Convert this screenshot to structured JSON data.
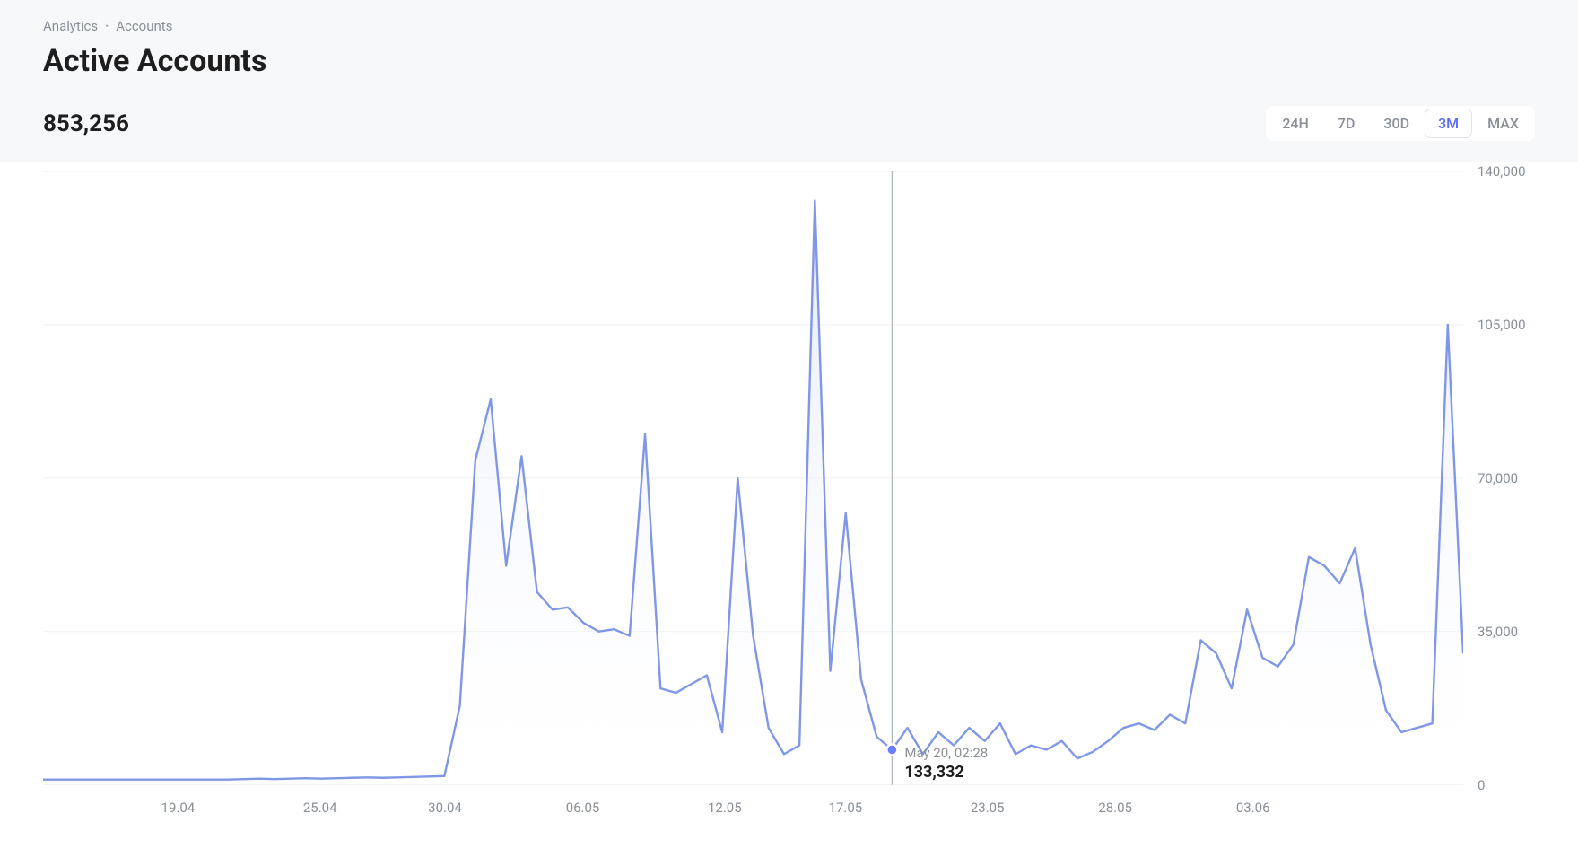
{
  "breadcrumb": {
    "parent": "Analytics",
    "current": "Accounts"
  },
  "title": "Active Accounts",
  "stat_value": "853,256",
  "time_ranges": {
    "options": [
      "24H",
      "7D",
      "30D",
      "3M",
      "MAX"
    ],
    "active": "3M"
  },
  "tooltip": {
    "date": "May 20, 02:28",
    "value": "133,332"
  },
  "chart": {
    "type": "area",
    "line_color": "#8097e6",
    "fill_top_color": "#e1e8fb",
    "fill_bottom_color": "#ffffff",
    "line_width": 2,
    "grid_color": "#f0f2f5",
    "crosshair_color": "#b0b4bc",
    "marker_color": "#6b7eff",
    "background_color": "#ffffff",
    "y_axis": {
      "min": 0,
      "max": 140000,
      "ticks": [
        0,
        35000,
        70000,
        105000,
        140000
      ],
      "tick_labels": [
        "0",
        "35,000",
        "70,000",
        "105,000",
        "140,000"
      ]
    },
    "x_axis": {
      "tick_labels": [
        "19.04",
        "25.04",
        "30.04",
        "06.05",
        "12.05",
        "17.05",
        "23.05",
        "28.05",
        "03.06"
      ],
      "tick_positions": [
        0.095,
        0.195,
        0.283,
        0.38,
        0.48,
        0.565,
        0.665,
        0.755,
        0.852
      ]
    },
    "crosshair_x": 0.593,
    "series": [
      1200,
      1200,
      1200,
      1200,
      1200,
      1200,
      1200,
      1200,
      1200,
      1200,
      1200,
      1200,
      1200,
      1300,
      1400,
      1300,
      1400,
      1500,
      1400,
      1500,
      1600,
      1700,
      1600,
      1700,
      1800,
      1900,
      2000,
      18000,
      74000,
      88000,
      50000,
      75000,
      44000,
      40000,
      40500,
      37000,
      35000,
      35500,
      34000,
      80000,
      22000,
      21000,
      23000,
      25000,
      12000,
      70000,
      34000,
      13000,
      7000,
      9000,
      133332,
      26000,
      62000,
      24000,
      11000,
      8000,
      13000,
      7000,
      12000,
      9000,
      13000,
      10000,
      14000,
      7000,
      9000,
      8000,
      10000,
      6000,
      7500,
      10000,
      13000,
      14000,
      12500,
      16000,
      14000,
      33000,
      30000,
      22000,
      40000,
      29000,
      27000,
      32000,
      52000,
      50000,
      46000,
      54000,
      32000,
      17000,
      12000,
      13000,
      14000,
      105000,
      30000
    ]
  }
}
